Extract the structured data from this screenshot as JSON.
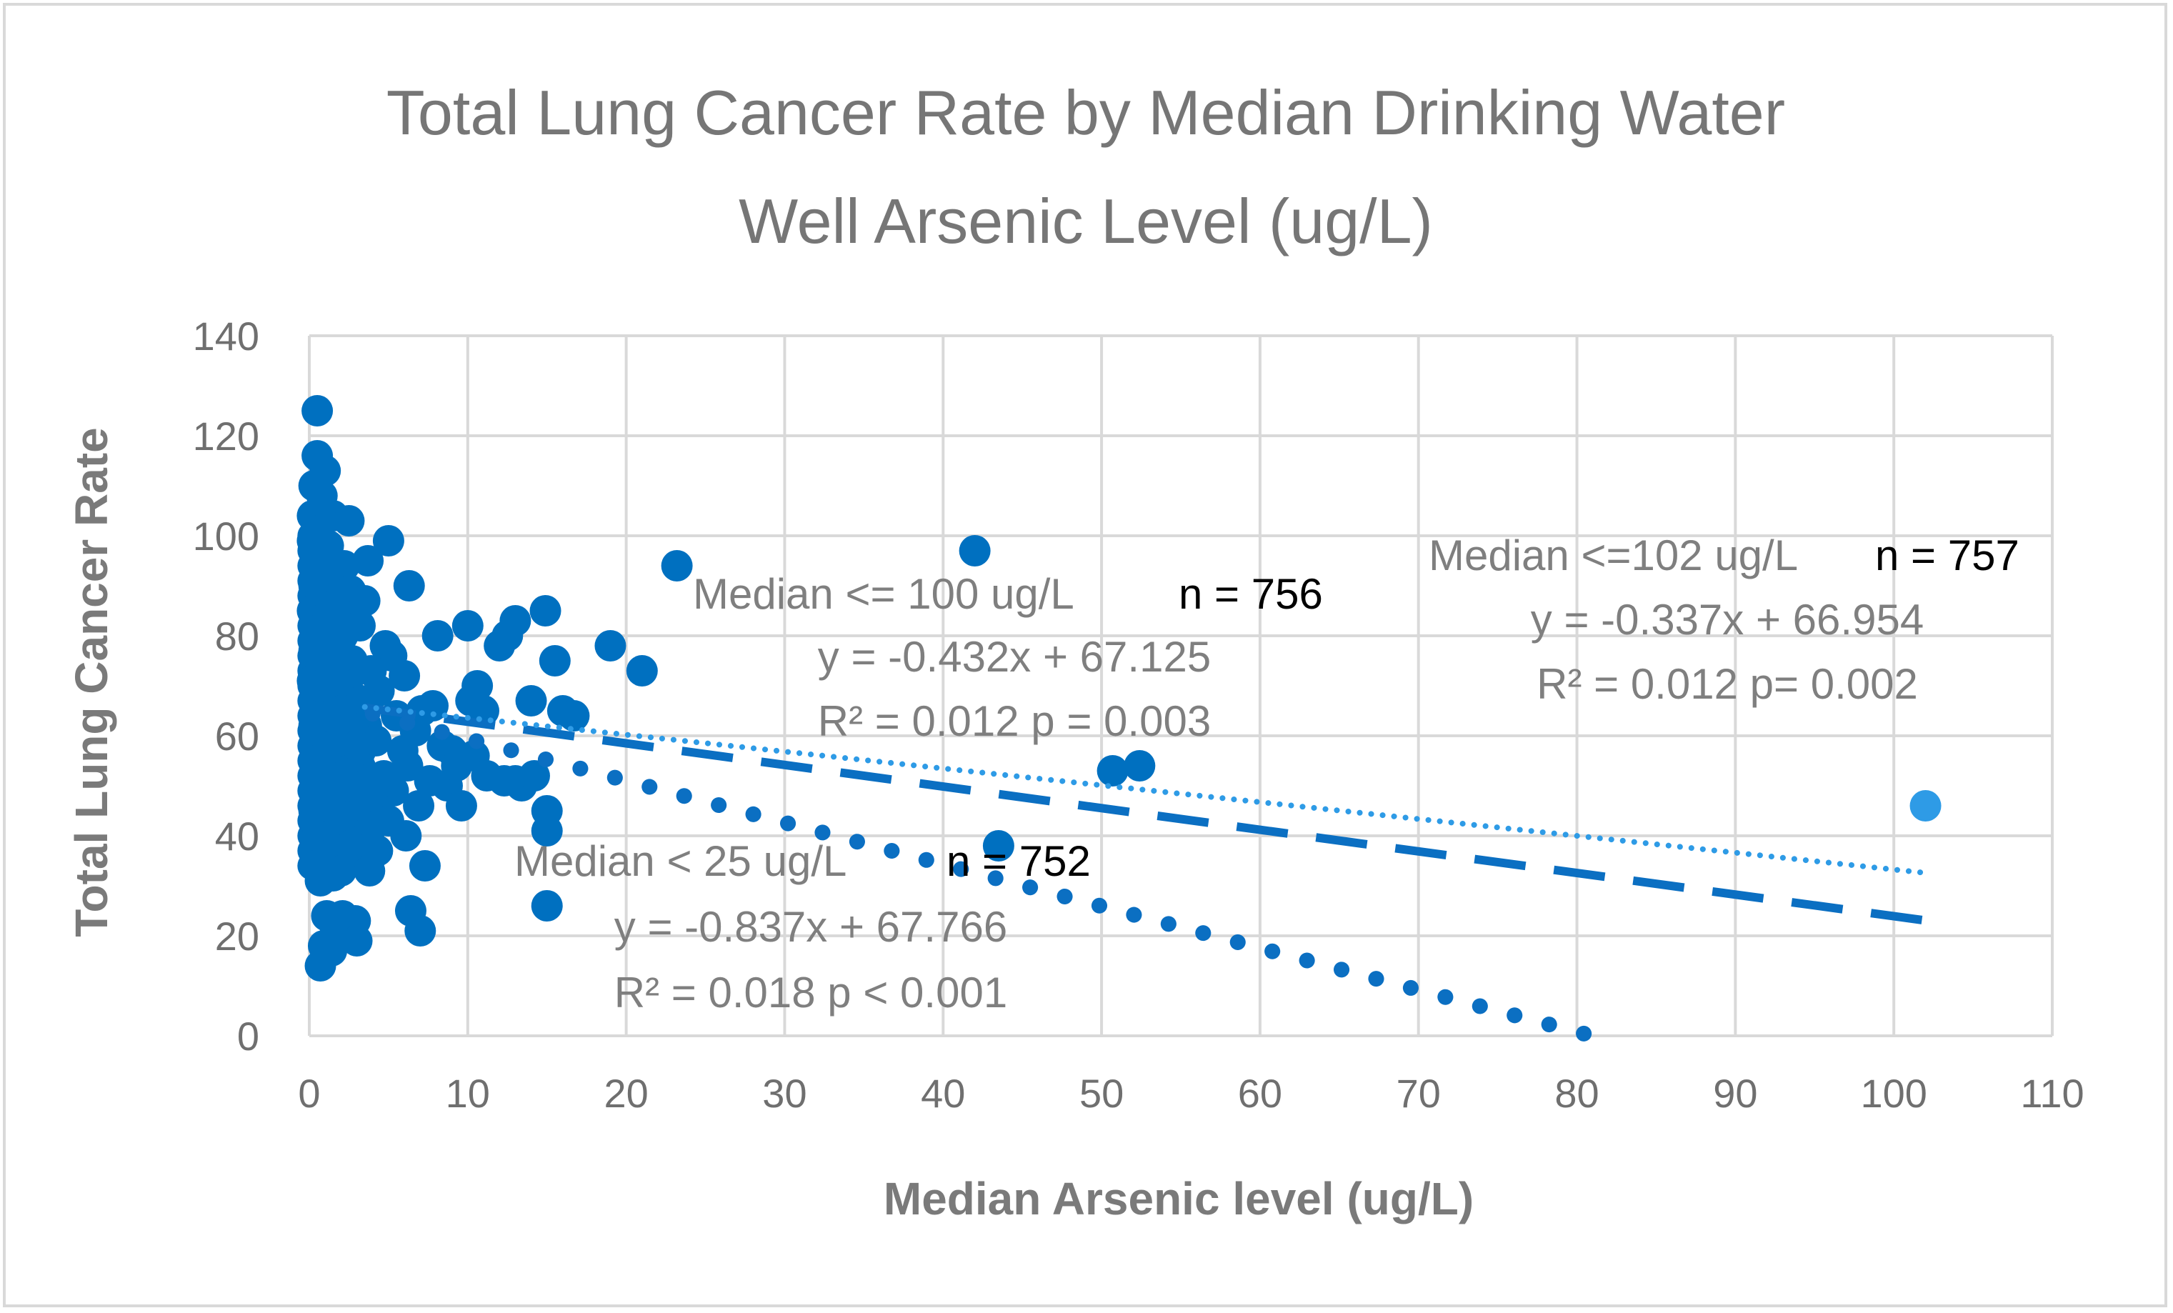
{
  "chart_data": {
    "type": "scatter",
    "title_lines": [
      "Total Lung Cancer Rate by Median Drinking Water",
      "Well Arsenic Level (ug/L)"
    ],
    "xlabel": "Median Arsenic level (ug/L)",
    "ylabel": "Total Lung Cancer Rate",
    "xlim": [
      0,
      110
    ],
    "ylim": [
      0,
      140
    ],
    "x_ticks": [
      0,
      10,
      20,
      30,
      40,
      50,
      60,
      70,
      80,
      90,
      100,
      110
    ],
    "y_ticks": [
      0,
      20,
      40,
      60,
      80,
      100,
      120,
      140
    ],
    "grid": true,
    "colors": {
      "points": "#0070c0",
      "outlier_point": "#2e9be6",
      "trend_100": "#0b6fc2",
      "trend_25": "#0b6fc2",
      "trend_102": "#2e9be6",
      "grid": "#d9d9d9"
    },
    "series": [
      {
        "name": "Median <= 100 ug/L",
        "n_label": "n = 756",
        "points": [
          [
            0.5,
            125
          ],
          [
            0.5,
            116
          ],
          [
            1,
            113
          ],
          [
            0.3,
            110
          ],
          [
            0.8,
            108
          ],
          [
            0.2,
            104
          ],
          [
            1.5,
            104
          ],
          [
            2.5,
            103
          ],
          [
            0.6,
            101
          ],
          [
            0.2,
            99
          ],
          [
            5,
            99
          ],
          [
            1.2,
            98
          ],
          [
            0.4,
            96
          ],
          [
            3.7,
            95
          ],
          [
            2.2,
            94
          ],
          [
            0.7,
            93
          ],
          [
            1.8,
            91
          ],
          [
            6.3,
            90
          ],
          [
            0.3,
            90
          ],
          [
            2.6,
            89
          ],
          [
            0.9,
            88
          ],
          [
            3.5,
            87
          ],
          [
            1.4,
            86
          ],
          [
            0.2,
            85
          ],
          [
            2.9,
            84
          ],
          [
            0.6,
            83
          ],
          [
            1.7,
            82
          ],
          [
            3.2,
            82
          ],
          [
            0.4,
            81
          ],
          [
            2.1,
            80
          ],
          [
            1,
            79
          ],
          [
            4.8,
            78
          ],
          [
            0.3,
            77
          ],
          [
            1.9,
            76
          ],
          [
            5.2,
            76
          ],
          [
            2.7,
            75
          ],
          [
            0.8,
            74
          ],
          [
            3.9,
            73
          ],
          [
            1.5,
            72
          ],
          [
            6,
            72
          ],
          [
            0.2,
            71
          ],
          [
            2.4,
            70
          ],
          [
            4.4,
            69
          ],
          [
            1.1,
            68
          ],
          [
            3.3,
            67
          ],
          [
            0.5,
            66
          ],
          [
            2,
            65
          ],
          [
            5.5,
            64
          ],
          [
            7.1,
            65
          ],
          [
            1.6,
            63
          ],
          [
            3.6,
            62
          ],
          [
            0.3,
            62
          ],
          [
            2.8,
            61
          ],
          [
            6.7,
            61
          ],
          [
            1.2,
            60
          ],
          [
            4.2,
            59
          ],
          [
            0.7,
            58
          ],
          [
            2.3,
            57
          ],
          [
            5.9,
            57
          ],
          [
            8.4,
            58
          ],
          [
            1.4,
            56
          ],
          [
            3.1,
            55
          ],
          [
            0.4,
            55
          ],
          [
            6.2,
            54
          ],
          [
            2.5,
            53
          ],
          [
            4.7,
            52
          ],
          [
            1,
            51
          ],
          [
            7.6,
            51
          ],
          [
            3.4,
            50
          ],
          [
            0.6,
            49
          ],
          [
            5.3,
            49
          ],
          [
            2.2,
            48
          ],
          [
            4,
            47
          ],
          [
            1.3,
            46
          ],
          [
            6.9,
            46
          ],
          [
            0.3,
            45
          ],
          [
            2.9,
            44
          ],
          [
            5,
            43
          ],
          [
            1.7,
            42
          ],
          [
            3.8,
            41
          ],
          [
            0.5,
            40
          ],
          [
            6.1,
            40
          ],
          [
            2.4,
            38
          ],
          [
            4.3,
            37
          ],
          [
            1.1,
            36
          ],
          [
            3.2,
            35
          ],
          [
            0.4,
            34
          ],
          [
            2,
            33
          ],
          [
            3.8,
            33
          ],
          [
            1.5,
            32
          ],
          [
            0.7,
            31
          ],
          [
            2.6,
            38
          ],
          [
            1.9,
            44
          ],
          [
            0.9,
            52
          ],
          [
            3,
            58
          ],
          [
            1.3,
            64
          ],
          [
            0.6,
            70
          ],
          [
            2.1,
            76
          ],
          [
            1.6,
            84
          ],
          [
            0.8,
            92
          ],
          [
            1.1,
            24
          ],
          [
            2.1,
            24
          ],
          [
            2.9,
            23
          ],
          [
            1.6,
            20
          ],
          [
            0.9,
            18
          ],
          [
            1.4,
            17
          ],
          [
            0.7,
            14
          ],
          [
            3,
            19
          ],
          [
            6.4,
            25
          ],
          [
            7,
            21
          ],
          [
            7.3,
            34
          ],
          [
            8.1,
            80
          ],
          [
            7.8,
            66
          ],
          [
            9,
            57
          ],
          [
            8.7,
            50
          ],
          [
            9.6,
            46
          ],
          [
            9.3,
            54
          ],
          [
            10,
            82
          ],
          [
            10.6,
            70
          ],
          [
            10.2,
            67
          ],
          [
            11,
            65
          ],
          [
            10.4,
            56
          ],
          [
            11.2,
            52
          ],
          [
            12,
            78
          ],
          [
            12.5,
            80
          ],
          [
            13,
            83
          ],
          [
            12.3,
            51
          ],
          [
            13,
            51
          ],
          [
            13.4,
            50
          ],
          [
            14,
            67
          ],
          [
            14.2,
            52
          ],
          [
            14.9,
            85
          ],
          [
            15.5,
            75
          ],
          [
            15,
            45
          ],
          [
            15,
            41
          ],
          [
            16,
            65
          ],
          [
            16.7,
            64
          ],
          [
            15,
            26
          ],
          [
            19,
            78
          ],
          [
            21,
            73
          ],
          [
            23.2,
            94
          ],
          [
            42,
            97
          ],
          [
            43.5,
            38
          ],
          [
            50.7,
            53
          ],
          [
            52.4,
            54
          ]
        ]
      },
      {
        "name": "Median <=102 ug/L",
        "n_label": "n = 757",
        "points": [
          [
            102,
            46
          ]
        ]
      }
    ],
    "trendlines": [
      {
        "name": "Median <= 100 ug/L",
        "style": "dashed",
        "slope": -0.432,
        "intercept": 67.125,
        "x_range": [
          3.5,
          102
        ],
        "equation": "y = -0.432x + 67.125",
        "r2_p": "R² = 0.012   p = 0.003"
      },
      {
        "name": "Median < 25 ug/L",
        "style": "dotted-round",
        "slope": -0.837,
        "intercept": 67.766,
        "x_range": [
          4,
          81
        ],
        "equation": "y = -0.837x + 67.766",
        "r2_p": "R² = 0.018   p < 0.001"
      },
      {
        "name": "Median <=102 ug/L",
        "style": "dotted-fine",
        "slope": -0.337,
        "intercept": 66.954,
        "x_range": [
          3.5,
          102
        ],
        "equation": "y = -0.337x + 66.954",
        "r2_p": "R² = 0.012    p= 0.002"
      }
    ],
    "annotations": {
      "a100": {
        "label": "Median <= 100 ug/L",
        "n": "n = 756",
        "eq": "y = -0.432x + 67.125",
        "stats": "R² = 0.012   p = 0.003"
      },
      "a25": {
        "label": "Median < 25 ug/L",
        "n": "n = 752",
        "eq": "y = -0.837x + 67.766",
        "stats": "R² = 0.018   p < 0.001"
      },
      "a102": {
        "label": "Median <=102 ug/L",
        "n": "n = 757",
        "eq": "y = -0.337x + 66.954",
        "stats": "R² = 0.012    p= 0.002"
      }
    }
  }
}
